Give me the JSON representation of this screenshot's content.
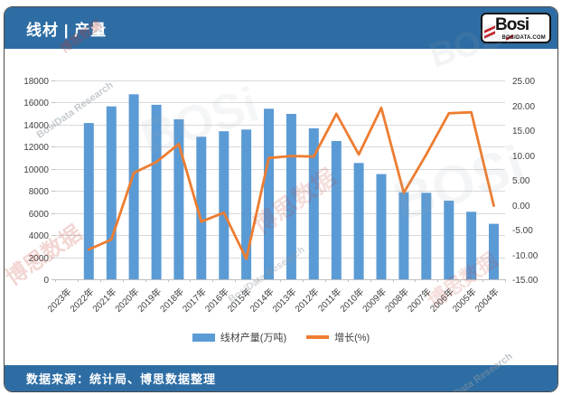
{
  "header": {
    "title": "线材 | 产量",
    "logo": {
      "brand": "Bosi",
      "domain": "BOSIDATA.COM"
    }
  },
  "footer": {
    "source": "数据来源：统计局、博思数据整理"
  },
  "watermark": {
    "cn": "博思数据",
    "en": "BosiData Research",
    "logo": "BOSi"
  },
  "chart_data": {
    "type": "bar",
    "title": "线材 | 产量",
    "categories": [
      "2023年",
      "2022年",
      "2021年",
      "2020年",
      "2019年",
      "2018年",
      "2017年",
      "2016年",
      "2015年",
      "2014年",
      "2013年",
      "2012年",
      "2011年",
      "2010年",
      "2009年",
      "2008年",
      "2007年",
      "2006年",
      "2005年",
      "2004年"
    ],
    "series": [
      {
        "name": "线材产量(万吨)",
        "type": "bar",
        "axis": "left",
        "color": "#5b9bd5",
        "values": [
          null,
          14150,
          15650,
          16750,
          15800,
          14480,
          12900,
          13400,
          13560,
          15440,
          14970,
          13660,
          12520,
          10530,
          9520,
          7880,
          7830,
          7120,
          6110,
          5020
        ]
      },
      {
        "name": "增长(%)",
        "type": "line",
        "axis": "right",
        "color": "#ed7d31",
        "values": [
          null,
          -9.0,
          -7.0,
          6.4,
          8.6,
          12.2,
          -3.4,
          -1.6,
          -10.9,
          9.4,
          9.8,
          9.7,
          18.3,
          10.1,
          19.5,
          2.4,
          10.1,
          18.4,
          18.6,
          -0.2
        ]
      }
    ],
    "left_axis": {
      "min": 0,
      "max": 18000,
      "step": 2000
    },
    "right_axis": {
      "min": -15,
      "max": 25,
      "step": 5,
      "decimals": 2
    },
    "grid": true,
    "legend_position": "bottom",
    "x_label_rotation": -45
  }
}
